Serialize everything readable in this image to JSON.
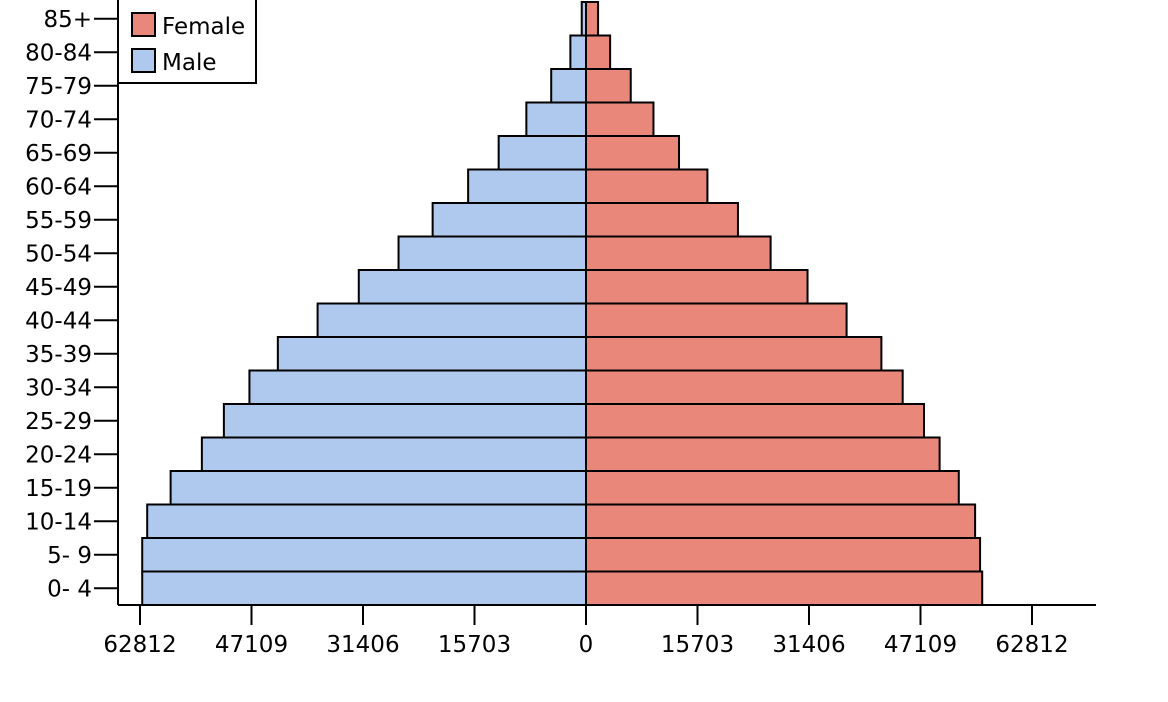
{
  "chart_data": {
    "type": "bar",
    "orientation": "horizontal-population-pyramid",
    "title": "",
    "xlabel": "",
    "ylabel": "",
    "categories": [
      "0- 4",
      "5- 9",
      "10-14",
      "15-19",
      "20-24",
      "25-29",
      "30-34",
      "35-39",
      "40-44",
      "45-49",
      "50-54",
      "55-59",
      "60-64",
      "65-69",
      "70-74",
      "75-79",
      "80-84",
      "85+"
    ],
    "series": [
      {
        "name": "Male",
        "color": "#afc8ee",
        "values": [
          62500,
          62500,
          61800,
          58500,
          54100,
          51000,
          47400,
          43400,
          37800,
          32000,
          26400,
          21600,
          16600,
          12300,
          8400,
          4900,
          2200,
          600
        ]
      },
      {
        "name": "Female",
        "color": "#e8877a",
        "values": [
          55800,
          55500,
          54800,
          52500,
          49800,
          47600,
          44600,
          41600,
          36700,
          31200,
          26000,
          21400,
          17100,
          13100,
          9500,
          6300,
          3400,
          1700
        ]
      }
    ],
    "xlim": [
      -71000,
      71700
    ],
    "xticks": [
      -62812,
      -47109,
      -31406,
      -15703,
      0,
      15703,
      31406,
      47109,
      62812
    ],
    "xtick_labels": [
      "62812",
      "47109",
      "31406",
      "15703",
      "0",
      "15703",
      "31406",
      "47109",
      "62812"
    ],
    "grid": false,
    "legend_position": "top-left"
  }
}
